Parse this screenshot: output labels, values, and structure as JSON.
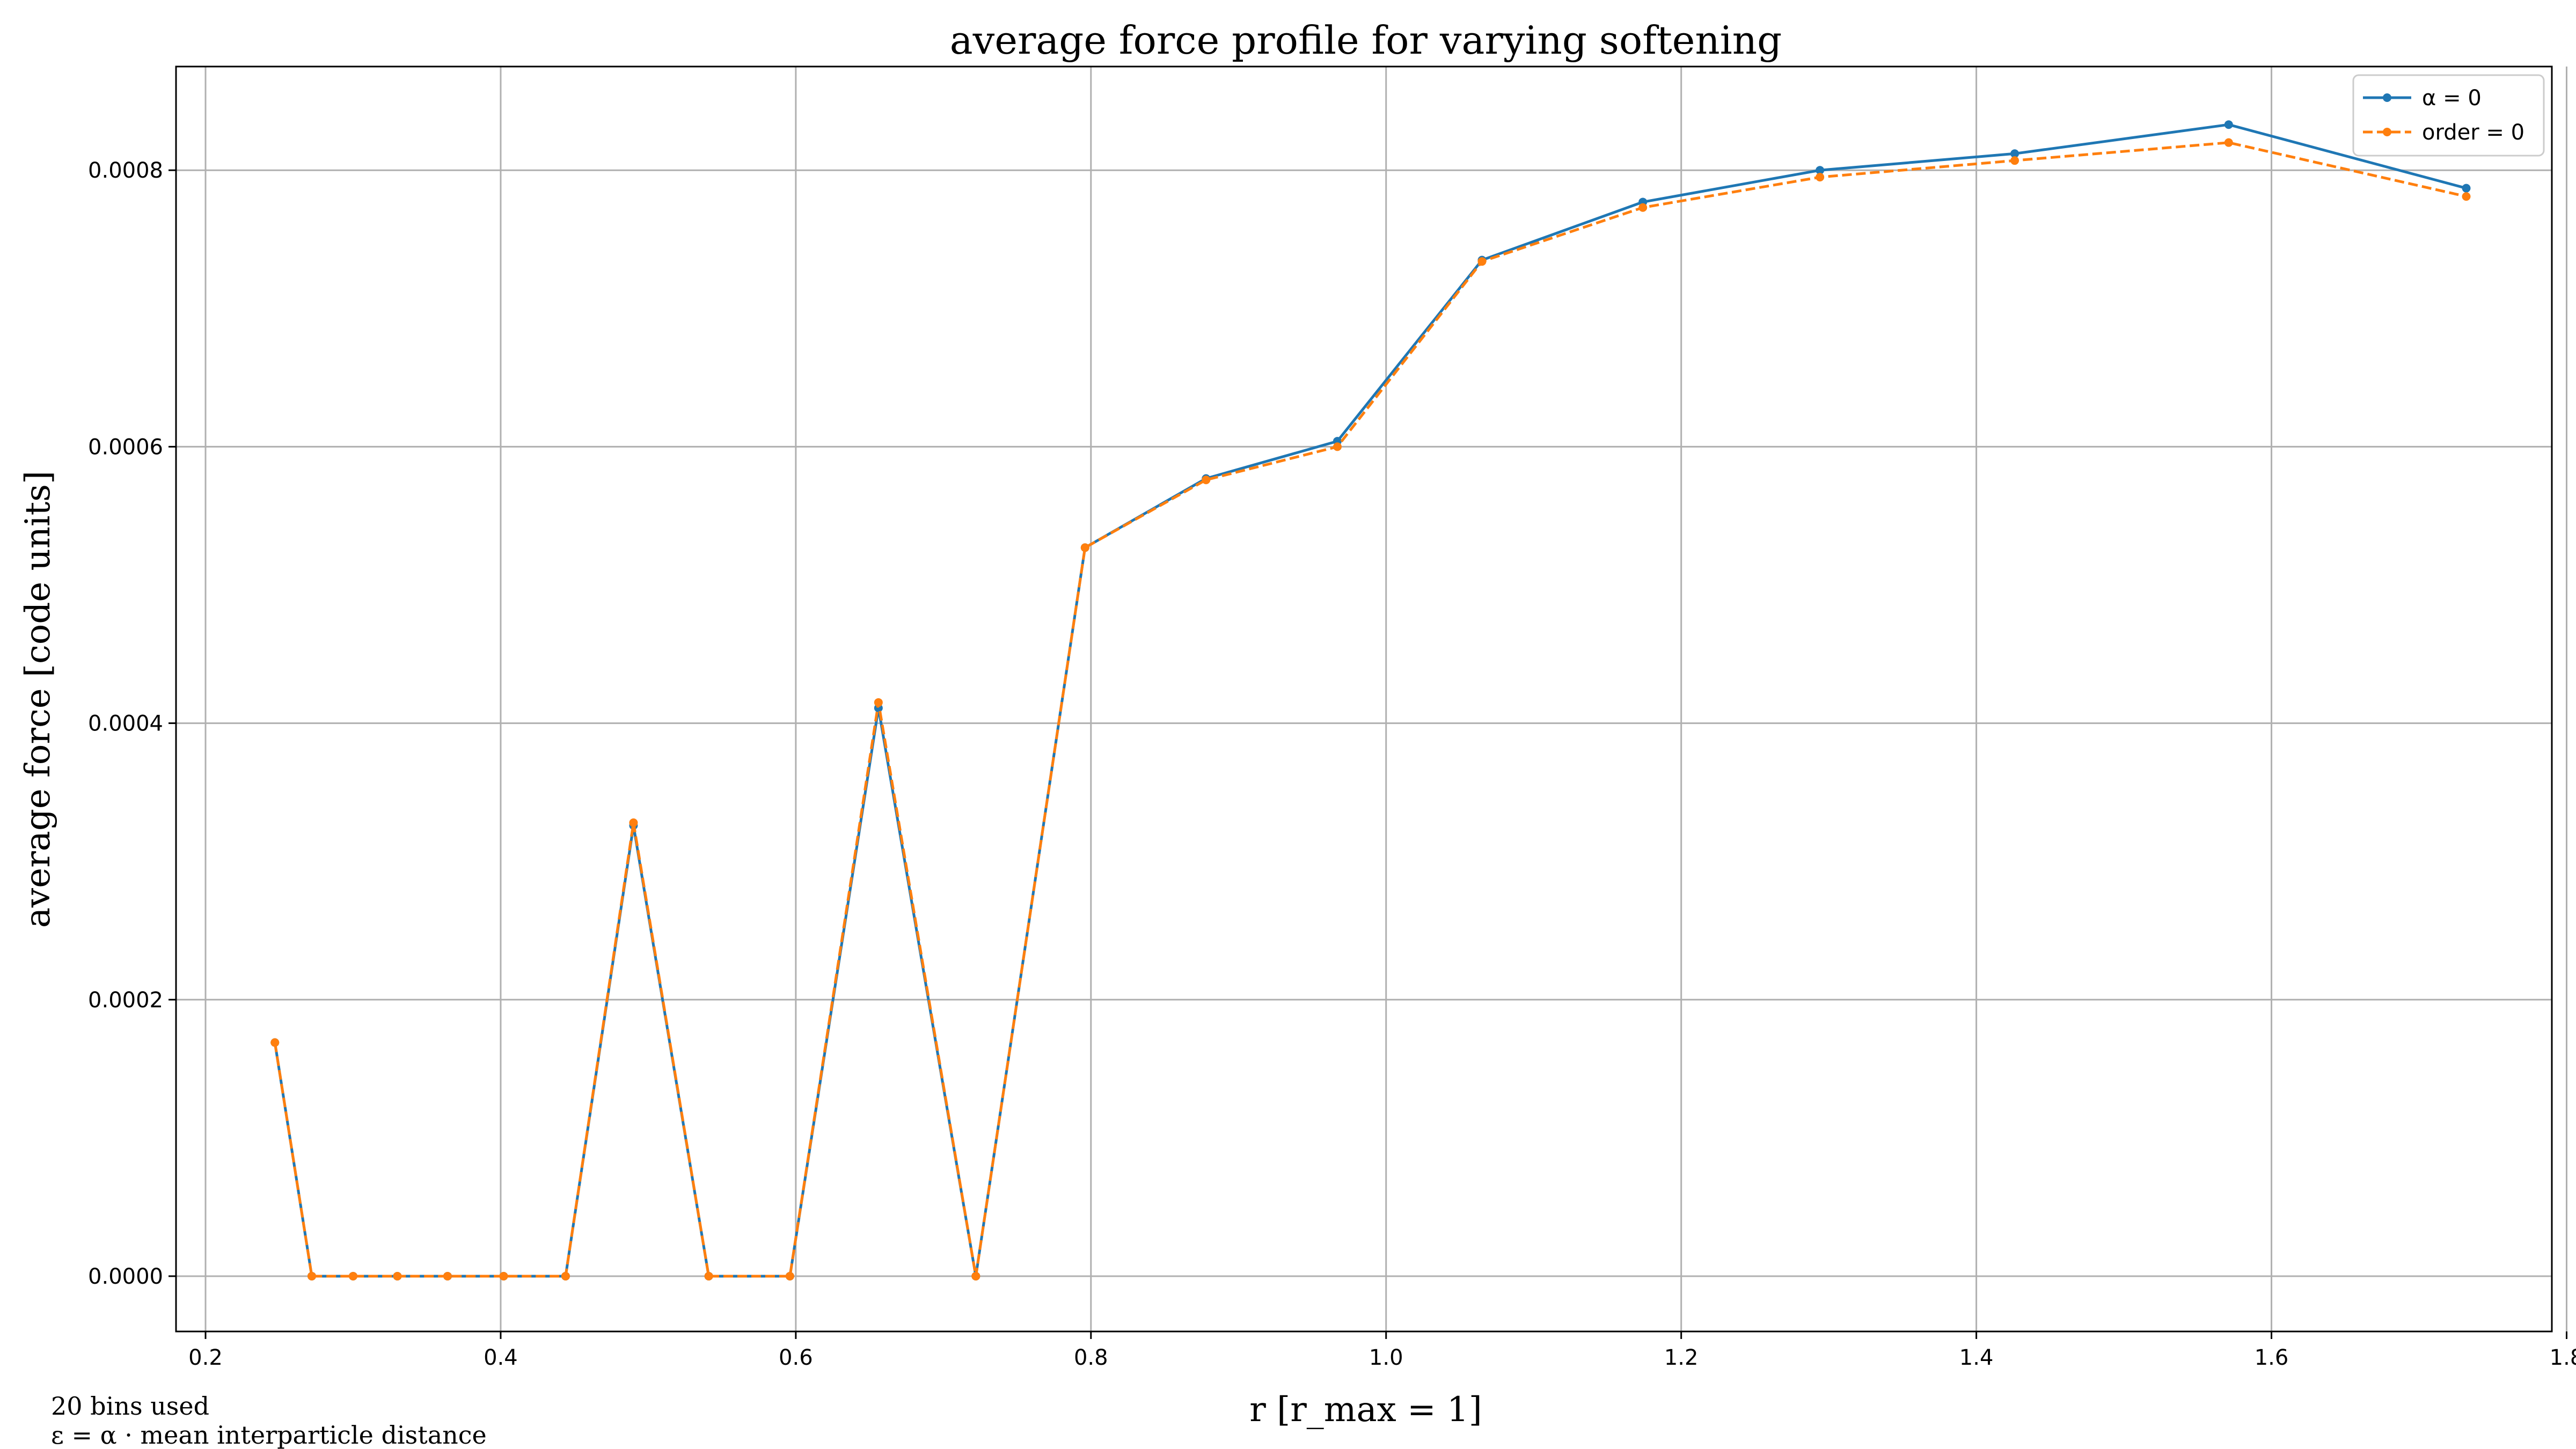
{
  "chart_data": {
    "type": "line",
    "title": "average force profile for varying softening",
    "xlabel": "r [r_max = 1]",
    "ylabel": "average force [code units]",
    "xlim": [
      0.18,
      1.79
    ],
    "ylim": [
      -4e-05,
      0.000875
    ],
    "xticks": [
      {
        "value": 0.2,
        "label": "0.2"
      },
      {
        "value": 0.4,
        "label": "0.4"
      },
      {
        "value": 0.6,
        "label": "0.6"
      },
      {
        "value": 0.8,
        "label": "0.8"
      },
      {
        "value": 1.0,
        "label": "1.0"
      },
      {
        "value": 1.2,
        "label": "1.2"
      },
      {
        "value": 1.4,
        "label": "1.4"
      },
      {
        "value": 1.6,
        "label": "1.6"
      },
      {
        "value": 1.8,
        "label": "1.8"
      }
    ],
    "yticks": [
      {
        "value": 0.0,
        "label": "0.0000"
      },
      {
        "value": 0.0002,
        "label": "0.0002"
      },
      {
        "value": 0.0004,
        "label": "0.0004"
      },
      {
        "value": 0.0006,
        "label": "0.0006"
      },
      {
        "value": 0.0008,
        "label": "0.0008"
      }
    ],
    "grid": true,
    "legend_position": "top-right",
    "x": [
      0.247,
      0.272,
      0.3,
      0.33,
      0.364,
      0.402,
      0.444,
      0.49,
      0.541,
      0.596,
      0.656,
      0.722,
      0.796,
      0.878,
      0.967,
      1.065,
      1.174,
      1.294,
      1.426,
      1.571,
      1.732
    ],
    "series": [
      {
        "name": "α = 0",
        "color": "#1f77b4",
        "linestyle": "solid",
        "values": [
          0.000169,
          0.0,
          0.0,
          0.0,
          0.0,
          0.0,
          0.0,
          0.000326,
          0.0,
          0.0,
          0.000411,
          0.0,
          0.000527,
          0.000577,
          0.000604,
          0.000735,
          0.000777,
          0.0008,
          0.000812,
          0.000833,
          0.000787
        ]
      },
      {
        "name": "order = 0",
        "color": "#ff7f0e",
        "linestyle": "dashed",
        "values": [
          0.000169,
          0.0,
          0.0,
          0.0,
          0.0,
          0.0,
          0.0,
          0.000328,
          0.0,
          0.0,
          0.000415,
          0.0,
          0.000527,
          0.000576,
          0.0006,
          0.000734,
          0.000773,
          0.000795,
          0.000807,
          0.00082,
          0.000781
        ]
      }
    ],
    "annotations": [
      "20 bins used",
      "ε = α · mean interparticle distance"
    ]
  }
}
